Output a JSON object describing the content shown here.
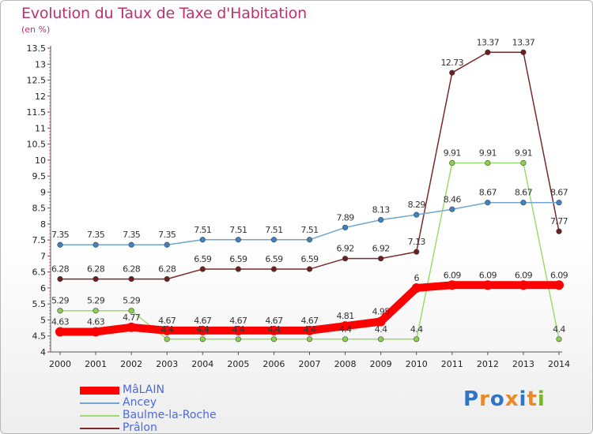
{
  "title": "Evolution du Taux de Taxe d'Habitation",
  "unit": "(en %)",
  "logo": {
    "text": "Proxiti",
    "colors": [
      "#2f74c9",
      "#e8892b",
      "#2f74c9",
      "#e8892b",
      "#2f74c9",
      "#e8892b",
      "#79b52c"
    ]
  },
  "chart_data": {
    "type": "line",
    "title": "Evolution du Taux de Taxe d'Habitation",
    "ylabel": "(en %)",
    "xlabel": "",
    "x": [
      "2000",
      "2001",
      "2002",
      "2003",
      "2004",
      "2005",
      "2006",
      "2007",
      "2008",
      "2009",
      "2010",
      "2011",
      "2012",
      "2013",
      "2014"
    ],
    "ylim": [
      4,
      13.5
    ],
    "yticks": [
      "4",
      "4.5",
      "5",
      "5.5",
      "6",
      "6.5",
      "7",
      "7.5",
      "8",
      "8.5",
      "9",
      "9.5",
      "10",
      "10.5",
      "11",
      "11.5",
      "12",
      "12.5",
      "13",
      "13.5"
    ],
    "grid": false,
    "legend_position": "bottom-left",
    "series": [
      {
        "name": "MâLAIN",
        "color": "#ff0000",
        "dot": "#ff0000",
        "emphasis": true,
        "values": [
          4.63,
          4.63,
          4.77,
          4.67,
          4.67,
          4.67,
          4.67,
          4.67,
          4.81,
          4.95,
          6,
          6.09,
          6.09,
          6.09,
          6.09
        ],
        "labels": [
          "4.63",
          "4.63",
          "4.77",
          "4.67",
          "4.67",
          "4.67",
          "4.67",
          "4.67",
          "4.81",
          "4.95",
          "6",
          "6.09",
          "6.09",
          "6.09",
          "6.09"
        ]
      },
      {
        "name": "Ancey",
        "color": "#72a6cf",
        "dot": "#3f82c2",
        "values": [
          7.35,
          7.35,
          7.35,
          7.35,
          7.51,
          7.51,
          7.51,
          7.51,
          7.89,
          8.13,
          8.29,
          8.46,
          8.67,
          8.67,
          8.67
        ],
        "labels": [
          "7.35",
          "7.35",
          "7.35",
          "7.35",
          "7.51",
          "7.51",
          "7.51",
          "7.51",
          "7.89",
          "8.13",
          "8.29",
          "8.46",
          "8.67",
          "8.67",
          "8.67"
        ]
      },
      {
        "name": "Baulme-la-Roche",
        "color": "#9edb6f",
        "dot": "#8bd04a",
        "values": [
          5.29,
          5.29,
          5.29,
          4.4,
          4.4,
          4.4,
          4.4,
          4.4,
          4.4,
          4.4,
          4.4,
          9.91,
          9.91,
          9.91,
          4.4
        ],
        "labels": [
          "5.29",
          "5.29",
          "5.29",
          "4.4",
          "4.4",
          "4.4",
          "4.4",
          "4.4",
          "4.4",
          "4.4",
          "4.4",
          "9.91",
          "9.91",
          "9.91",
          "4.4"
        ]
      },
      {
        "name": "Prâlon",
        "color": "#7a2a2a",
        "dot": "#6e1e1e",
        "values": [
          6.28,
          6.28,
          6.28,
          6.28,
          6.59,
          6.59,
          6.59,
          6.59,
          6.92,
          6.92,
          7.13,
          12.73,
          13.37,
          13.37,
          7.77
        ],
        "labels": [
          "6.28",
          "6.28",
          "6.28",
          "6.28",
          "6.59",
          "6.59",
          "6.59",
          "6.59",
          "6.92",
          "6.92",
          "7.13",
          "12.73",
          "13.37",
          "13.37",
          "7.77"
        ]
      }
    ]
  }
}
